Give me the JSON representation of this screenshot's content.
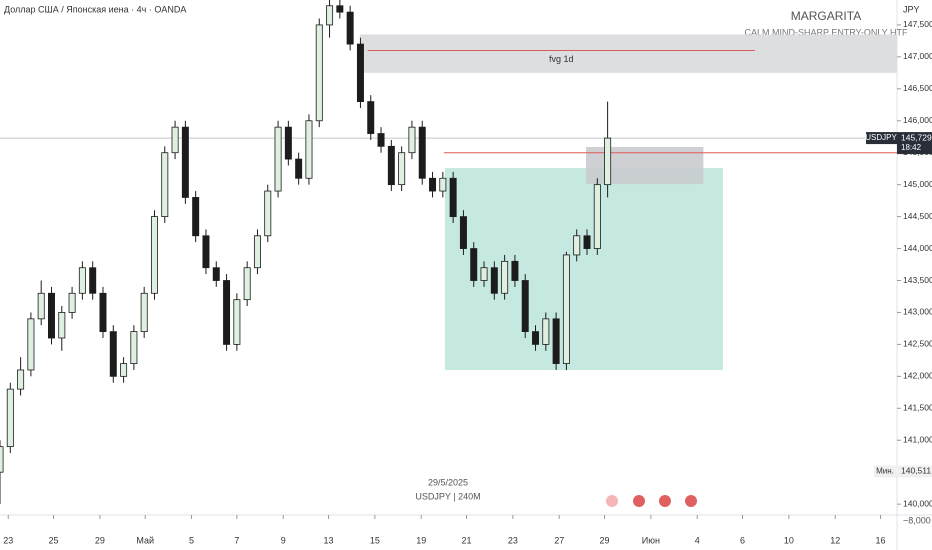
{
  "chart_data": {
    "type": "candlestick",
    "title": "Доллар США / Японская иена · 4ч · OANDA",
    "currency": "JPY",
    "watermark_title": "MARGARITA",
    "watermark_subtitle": "CALM MIND-SHARP ENTRY-ONLY HTF",
    "symbol": "USDJPY",
    "last_price": {
      "value": 145729,
      "label": "145,729"
    },
    "countdown": "18:42",
    "min_label": "Мин.",
    "min_price": {
      "value": 140511,
      "label": "140,511"
    },
    "cursor_date": "29/5/2025",
    "interval_label": "USDJPY | 240M",
    "axis_bottom_label": "−8,000",
    "up_color": "#dff0e0",
    "down_color": "#1c1c1c",
    "open": [
      140500,
      140900,
      141800,
      142100,
      142900,
      143300,
      142600,
      143000,
      143300,
      143700,
      143300,
      142700,
      142000,
      142200,
      142700,
      143300,
      144500,
      145500,
      145900,
      144800,
      144200,
      143700,
      143500,
      142500,
      143200,
      143700,
      144200,
      144900,
      145900,
      145400,
      145100,
      146000,
      147500,
      147800,
      147700,
      147200,
      146300,
      145800,
      145600,
      145000,
      145500,
      145900,
      145100,
      144900,
      145100,
      144500,
      144000,
      143500,
      143700,
      143300,
      143800,
      143500,
      142700,
      142500,
      142900,
      142200,
      143900,
      144200,
      144000,
      145000
    ],
    "high": [
      141000,
      141900,
      142300,
      143000,
      143500,
      143400,
      143100,
      143400,
      143800,
      143800,
      143400,
      142800,
      142300,
      142800,
      143400,
      144600,
      145600,
      146000,
      146000,
      144900,
      144300,
      143800,
      143600,
      143300,
      143800,
      144300,
      145000,
      146000,
      146000,
      145500,
      146100,
      147600,
      148000,
      147900,
      147800,
      147300,
      146400,
      145900,
      145700,
      145600,
      146000,
      146000,
      145200,
      145200,
      145200,
      144600,
      144100,
      143800,
      143800,
      143900,
      143900,
      143600,
      142800,
      143000,
      143000,
      143950,
      144300,
      144300,
      145100,
      146300
    ],
    "low": [
      140000,
      140800,
      141700,
      142000,
      142800,
      142500,
      142400,
      142900,
      143200,
      143200,
      142600,
      141900,
      141900,
      142100,
      142600,
      143200,
      144400,
      145400,
      144700,
      144100,
      143600,
      143400,
      142400,
      142400,
      143100,
      143600,
      144100,
      144800,
      145300,
      145000,
      145000,
      145900,
      147300,
      147600,
      147100,
      146200,
      145700,
      145500,
      144900,
      144900,
      145400,
      145000,
      144800,
      144800,
      144400,
      143900,
      143400,
      143400,
      143200,
      143200,
      143400,
      142600,
      142400,
      142400,
      142100,
      142100,
      143800,
      143900,
      143900,
      144800
    ],
    "close": [
      140900,
      141800,
      142100,
      142900,
      143300,
      142600,
      143000,
      143300,
      143700,
      143300,
      142700,
      142000,
      142200,
      142700,
      143300,
      144500,
      145500,
      145900,
      144800,
      144200,
      143700,
      143500,
      142500,
      143200,
      143700,
      144200,
      144900,
      145900,
      145400,
      145100,
      146000,
      147500,
      147800,
      147700,
      147200,
      146300,
      145800,
      145600,
      145000,
      145500,
      145900,
      145100,
      144900,
      145100,
      144500,
      144000,
      143500,
      143700,
      143300,
      143800,
      143500,
      142700,
      142500,
      142900,
      142200,
      143900,
      144200,
      144000,
      145000,
      145729
    ],
    "xlim": [
      0,
      87.1
    ],
    "xticks": [
      {
        "value": 0.8,
        "label": "23"
      },
      {
        "value": 5.2,
        "label": "25"
      },
      {
        "value": 9.7,
        "label": "29"
      },
      {
        "value": 14.1,
        "label": "Май"
      },
      {
        "value": 18.6,
        "label": "5"
      },
      {
        "value": 23.0,
        "label": "7"
      },
      {
        "value": 27.5,
        "label": "9"
      },
      {
        "value": 31.9,
        "label": "13"
      },
      {
        "value": 36.4,
        "label": "15"
      },
      {
        "value": 40.9,
        "label": "19"
      },
      {
        "value": 45.3,
        "label": "21"
      },
      {
        "value": 49.8,
        "label": "23"
      },
      {
        "value": 54.3,
        "label": "27"
      },
      {
        "value": 58.7,
        "label": "29"
      },
      {
        "value": 63.2,
        "label": "Июн"
      },
      {
        "value": 67.7,
        "label": "4"
      },
      {
        "value": 72.1,
        "label": "6"
      },
      {
        "value": 76.6,
        "label": "10"
      },
      {
        "value": 81.1,
        "label": "12"
      },
      {
        "value": 85.5,
        "label": "16"
      }
    ],
    "ylim": [
      139830,
      147890
    ],
    "yticks": [
      {
        "value": 140000,
        "label": "140,000"
      },
      {
        "value": 140500,
        "label": "140,500"
      },
      {
        "value": 141000,
        "label": "141,000"
      },
      {
        "value": 141500,
        "label": "141,500"
      },
      {
        "value": 142000,
        "label": "142,000"
      },
      {
        "value": 142500,
        "label": "142,500"
      },
      {
        "value": 143000,
        "label": "143,000"
      },
      {
        "value": 143500,
        "label": "143,500"
      },
      {
        "value": 144000,
        "label": "144,000"
      },
      {
        "value": 144500,
        "label": "144,500"
      },
      {
        "value": 145000,
        "label": "145,000"
      },
      {
        "value": 145500,
        "label": "145,500"
      },
      {
        "value": 146000,
        "label": "146,000"
      },
      {
        "value": 146500,
        "label": "146,500"
      },
      {
        "value": 147000,
        "label": "147,000"
      },
      {
        "value": 147500,
        "label": "147,500"
      }
    ],
    "zones": [
      {
        "x0": 34.95,
        "x1": 87.1,
        "top": 147350,
        "bottom": 146750,
        "color": "#d9dadd"
      },
      {
        "x0": 43.2,
        "x1": 70.2,
        "top": 145260,
        "bottom": 142100,
        "color": "#bfe5dd"
      },
      {
        "x0": 56.9,
        "x1": 68.3,
        "top": 145590,
        "bottom": 145010,
        "color": "#c9cbcf"
      }
    ],
    "levels": [
      {
        "x0": 35.7,
        "x1": 73.3,
        "value": 147100,
        "color": "#e05a5a",
        "label": "fvg 1d"
      },
      {
        "x0": 43.1,
        "x1": 87.1,
        "value": 145500,
        "color": "#e05a5a"
      }
    ]
  }
}
